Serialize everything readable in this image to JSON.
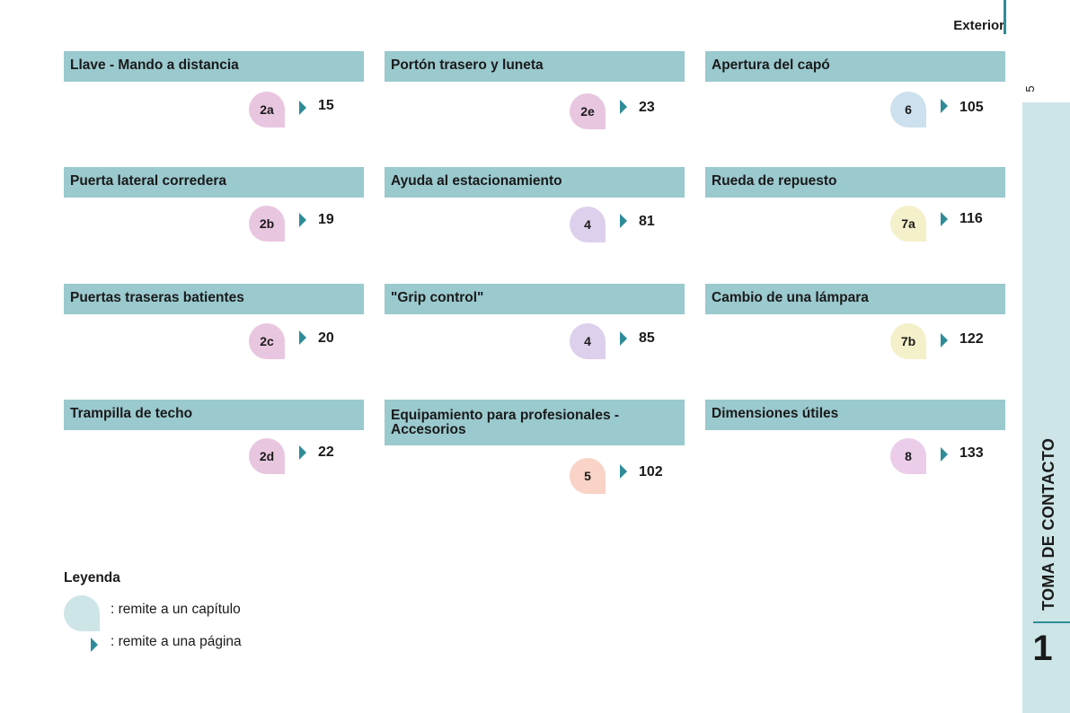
{
  "header": {
    "title": "Exterior",
    "page_number": "5"
  },
  "side_tab": {
    "label": "TOMA DE CONTACTO",
    "number": "1"
  },
  "colors": {
    "accent": "#2f8c97",
    "header_bg": "#9ac9ce",
    "tab_bg": "#cde5e7"
  },
  "sections": [
    {
      "title": "Llave - Mando a distancia",
      "chapter": "2a",
      "page": "15",
      "bubble_color": "#e9c6df"
    },
    {
      "title": "Portón trasero y luneta",
      "chapter": "2e",
      "page": "23",
      "bubble_color": "#e9c6df"
    },
    {
      "title": "Apertura del capó",
      "chapter": "6",
      "page": "105",
      "bubble_color": "#cde0ee"
    },
    {
      "title": "Puerta lateral corredera",
      "chapter": "2b",
      "page": "19",
      "bubble_color": "#e9c6df"
    },
    {
      "title": "Ayuda al estacionamiento",
      "chapter": "4",
      "page": "81",
      "bubble_color": "#ddd0ec"
    },
    {
      "title": "Rueda de repuesto",
      "chapter": "7a",
      "page": "116",
      "bubble_color": "#f4f0c9"
    },
    {
      "title": "Puertas traseras batientes",
      "chapter": "2c",
      "page": "20",
      "bubble_color": "#e9c6df"
    },
    {
      "title": "\"Grip control\"",
      "chapter": "4",
      "page": "85",
      "bubble_color": "#ddd0ec"
    },
    {
      "title": "Cambio de una lámpara",
      "chapter": "7b",
      "page": "122",
      "bubble_color": "#f4f0c9"
    },
    {
      "title": "Trampilla de techo",
      "chapter": "2d",
      "page": "22",
      "bubble_color": "#e9c6df"
    },
    {
      "title": "Equipamiento para profesionales - Accesorios",
      "chapter": "5",
      "page": "102",
      "bubble_color": "#f8d3c6"
    },
    {
      "title": "Dimensiones útiles",
      "chapter": "8",
      "page": "133",
      "bubble_color": "#ebcce9"
    }
  ],
  "legend": {
    "title": "Leyenda",
    "chapter_text": ": remite a un capítulo",
    "page_text": ": remite a una página"
  }
}
